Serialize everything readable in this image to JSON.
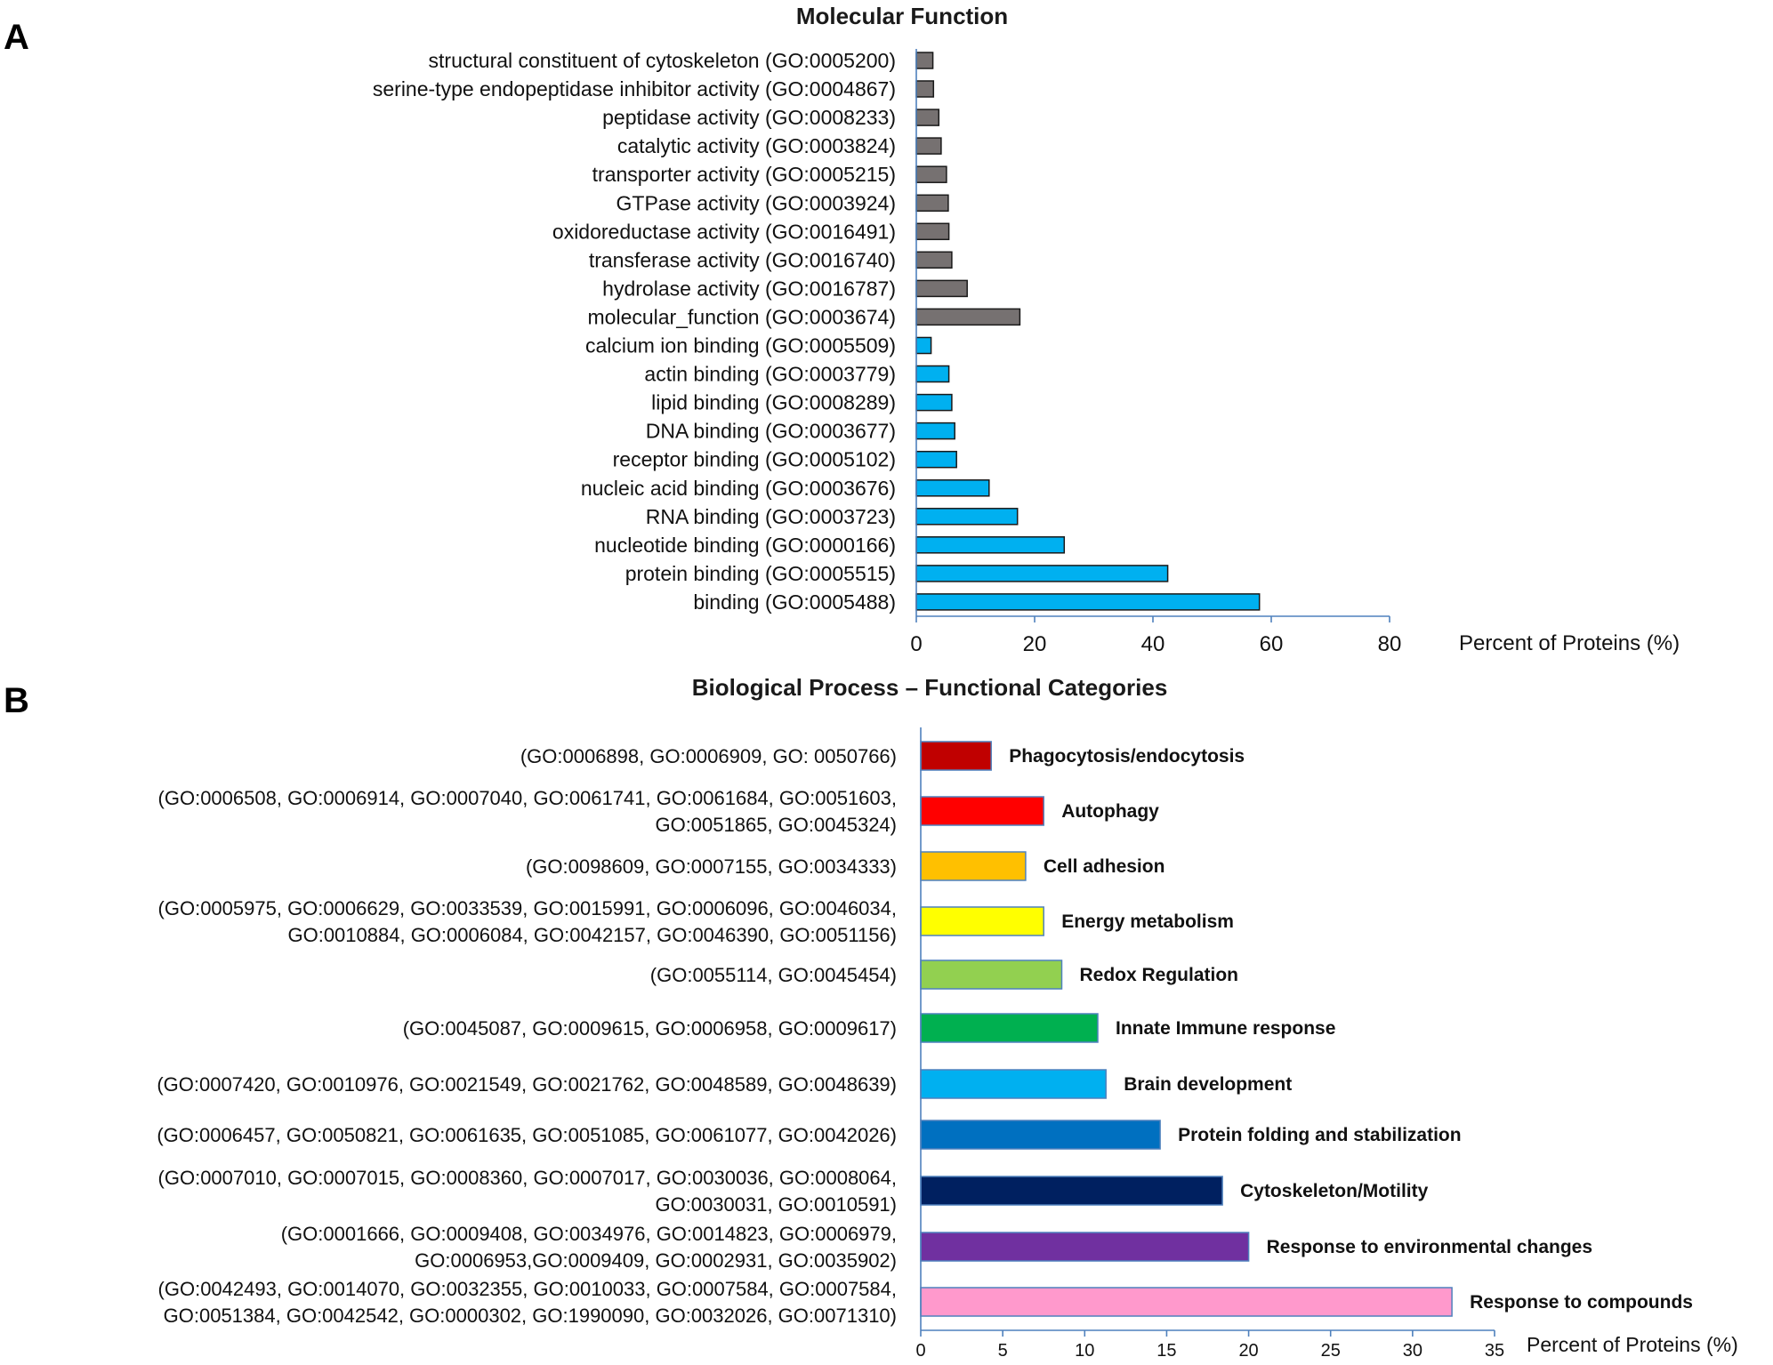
{
  "panels": {
    "a_letter": "A",
    "b_letter": "B"
  },
  "chart_data": [
    {
      "type": "bar",
      "orientation": "horizontal",
      "title": "Molecular Function",
      "xlabel": "Percent of Proteins (%)",
      "ylabel": "",
      "xlim": [
        0,
        80
      ],
      "xticks": [
        0,
        20,
        40,
        60,
        80
      ],
      "legend": "none",
      "grid": false,
      "colors": {
        "general": "#767171",
        "binding": "#00b0f0",
        "border": "#1a1a1a"
      },
      "categories": [
        "structural constituent of cytoskeleton (GO:0005200)",
        "serine-type endopeptidase inhibitor activity (GO:0004867)",
        "peptidase activity (GO:0008233)",
        "catalytic activity (GO:0003824)",
        "transporter activity (GO:0005215)",
        "GTPase activity (GO:0003924)",
        "oxidoreductase activity (GO:0016491)",
        "transferase activity (GO:0016740)",
        "hydrolase activity (GO:0016787)",
        "molecular_function (GO:0003674)",
        "calcium ion binding (GO:0005509)",
        "actin binding (GO:0003779)",
        "lipid binding (GO:0008289)",
        "DNA binding (GO:0003677)",
        "receptor binding (GO:0005102)",
        "nucleic acid binding (GO:0003676)",
        "RNA binding (GO:0003723)",
        "nucleotide binding (GO:0000166)",
        "protein binding (GO:0005515)",
        "binding (GO:0005488)"
      ],
      "values": [
        2.8,
        2.9,
        3.8,
        4.2,
        5.1,
        5.4,
        5.5,
        6.0,
        8.6,
        17.5,
        2.5,
        5.5,
        6.0,
        6.5,
        6.8,
        12.3,
        17.1,
        25.0,
        42.5,
        58.0
      ],
      "groups": [
        "general",
        "general",
        "general",
        "general",
        "general",
        "general",
        "general",
        "general",
        "general",
        "general",
        "binding",
        "binding",
        "binding",
        "binding",
        "binding",
        "binding",
        "binding",
        "binding",
        "binding",
        "binding"
      ]
    },
    {
      "type": "bar",
      "orientation": "horizontal",
      "title": "Biological Process – Functional Categories",
      "xlabel": "Percent of Proteins (%)",
      "ylabel": "",
      "xlim": [
        0,
        35
      ],
      "xticks": [
        0,
        5,
        10,
        15,
        20,
        25,
        30,
        35
      ],
      "legend": "none",
      "grid": false,
      "series": [
        {
          "name": "Phagocytosis/endocytosis",
          "value": 4.3,
          "color": "#c00000",
          "go_lines": [
            "(GO:0006898, GO:0006909, GO: 0050766)"
          ]
        },
        {
          "name": "Autophagy",
          "value": 7.5,
          "color": "#ff0000",
          "go_lines": [
            "(GO:0006508, GO:0006914, GO:0007040, GO:0061741, GO:0061684, GO:0051603,",
            "GO:0051865, GO:0045324)"
          ]
        },
        {
          "name": "Cell adhesion",
          "value": 6.4,
          "color": "#ffc000",
          "go_lines": [
            "(GO:0098609, GO:0007155, GO:0034333)"
          ]
        },
        {
          "name": "Energy metabolism",
          "value": 7.5,
          "color": "#ffff00",
          "go_lines": [
            "(GO:0005975, GO:0006629, GO:0033539, GO:0015991, GO:0006096, GO:0046034,",
            "GO:0010884,  GO:0006084, GO:0042157, GO:0046390, GO:0051156)"
          ]
        },
        {
          "name": "Redox Regulation",
          "value": 8.6,
          "color": "#92d050",
          "go_lines": [
            "(GO:0055114, GO:0045454)"
          ]
        },
        {
          "name": "Innate Immune response",
          "value": 10.8,
          "color": "#00b050",
          "go_lines": [
            "(GO:0045087, GO:0009615, GO:0006958, GO:0009617)"
          ]
        },
        {
          "name": "Brain development",
          "value": 11.3,
          "color": "#00b0f0",
          "go_lines": [
            "(GO:0007420, GO:0010976, GO:0021549, GO:0021762, GO:0048589, GO:0048639)"
          ]
        },
        {
          "name": "Protein folding and stabilization",
          "value": 14.6,
          "color": "#0070c0",
          "go_lines": [
            "(GO:0006457, GO:0050821, GO:0061635, GO:0051085, GO:0061077, GO:0042026)"
          ]
        },
        {
          "name": "Cytoskeleton/Motility",
          "value": 18.4,
          "color": "#002060",
          "go_lines": [
            "(GO:0007010, GO:0007015, GO:0008360, GO:0007017, GO:0030036, GO:0008064,",
            "GO:0030031, GO:0010591)"
          ]
        },
        {
          "name": "Response to environmental changes",
          "value": 20.0,
          "color": "#7030a0",
          "go_lines": [
            "(GO:0001666, GO:0009408, GO:0034976, GO:0014823, GO:0006979,",
            "GO:0006953,GO:0009409, GO:0002931, GO:0035902)"
          ]
        },
        {
          "name": "Response to compounds",
          "value": 32.4,
          "color": "#ff99cc",
          "go_lines": [
            "(GO:0042493, GO:0014070, GO:0032355, GO:0010033, GO:0007584, GO:0007584,",
            "GO:0051384, GO:0042542, GO:0000302,  GO:1990090, GO:0032026, GO:0071310)"
          ]
        }
      ],
      "colors": {
        "bar_border": "#4f81bd"
      }
    }
  ]
}
